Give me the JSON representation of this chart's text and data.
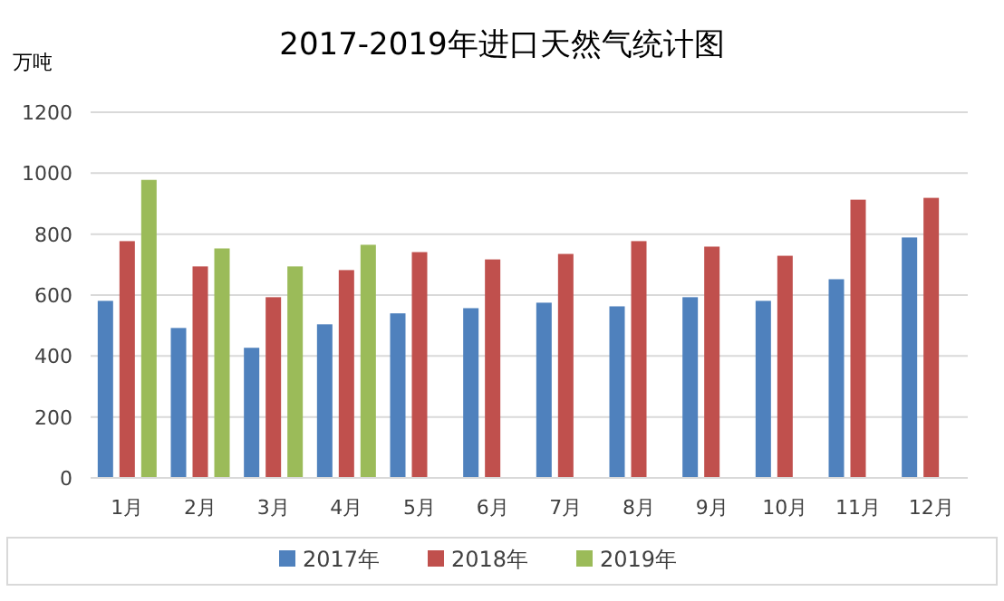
{
  "chart_data": {
    "type": "bar",
    "title": "2017-2019年进口天然气统计图",
    "ylabel": "万吨",
    "categories": [
      "1月",
      "2月",
      "3月",
      "4月",
      "5月",
      "6月",
      "7月",
      "8月",
      "9月",
      "10月",
      "11月",
      "12月"
    ],
    "series": [
      {
        "name": "2017年",
        "color": "#4f81bd",
        "values": [
          581,
          492,
          427,
          504,
          540,
          557,
          575,
          563,
          593,
          581,
          652,
          789
        ]
      },
      {
        "name": "2018年",
        "color": "#c0504d",
        "values": [
          777,
          694,
          593,
          682,
          741,
          717,
          735,
          777,
          759,
          729,
          913,
          919
        ]
      },
      {
        "name": "2019年",
        "color": "#9bbb59",
        "values": [
          978,
          753,
          694,
          765,
          null,
          null,
          null,
          null,
          null,
          null,
          null,
          null
        ]
      }
    ],
    "ylim": [
      0,
      1200
    ],
    "yticks": [
      0,
      200,
      400,
      600,
      800,
      1000,
      1200
    ],
    "grid": "y",
    "legend": "bottom"
  }
}
